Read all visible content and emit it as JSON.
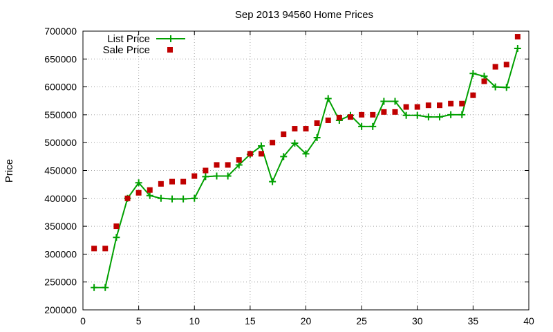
{
  "chart_data": {
    "type": "line",
    "title": "Sep 2013 94560 Home Prices",
    "xlabel": "",
    "ylabel": "Price",
    "xlim": [
      0,
      40
    ],
    "ylim": [
      200000,
      700000
    ],
    "xticks": [
      0,
      5,
      10,
      15,
      20,
      25,
      30,
      35,
      40
    ],
    "yticks": [
      200000,
      250000,
      300000,
      350000,
      400000,
      450000,
      500000,
      550000,
      600000,
      650000,
      700000
    ],
    "grid": true,
    "legend_position": "top-left",
    "series": [
      {
        "name": "List Price",
        "style": "line-with-plus-markers",
        "color": "#00a000",
        "x": [
          1,
          2,
          3,
          4,
          5,
          6,
          7,
          8,
          9,
          10,
          11,
          12,
          13,
          14,
          15,
          16,
          17,
          18,
          19,
          20,
          21,
          22,
          23,
          24,
          25,
          26,
          27,
          28,
          29,
          30,
          31,
          32,
          33,
          34,
          35,
          36,
          37,
          38,
          39
        ],
        "y": [
          240000,
          240000,
          330000,
          400000,
          428000,
          405000,
          400000,
          399000,
          399000,
          400000,
          439000,
          440000,
          440000,
          460000,
          479000,
          494000,
          430000,
          475000,
          499000,
          480000,
          509000,
          579000,
          540000,
          549000,
          529000,
          529000,
          574000,
          574000,
          549000,
          549000,
          546000,
          546000,
          550000,
          550000,
          624000,
          619000,
          600000,
          599000,
          669000
        ]
      },
      {
        "name": "Sale Price",
        "style": "square-markers",
        "color": "#c00000",
        "x": [
          1,
          2,
          3,
          4,
          5,
          6,
          7,
          8,
          9,
          10,
          11,
          12,
          13,
          14,
          15,
          16,
          17,
          18,
          19,
          20,
          21,
          22,
          23,
          24,
          25,
          26,
          27,
          28,
          29,
          30,
          31,
          32,
          33,
          34,
          35,
          36,
          37,
          38,
          39
        ],
        "y": [
          310000,
          310000,
          350000,
          400000,
          410000,
          415000,
          426000,
          430000,
          430000,
          440000,
          450000,
          460000,
          460000,
          469000,
          480000,
          480000,
          500000,
          515000,
          525000,
          525000,
          535000,
          540000,
          545000,
          546000,
          550000,
          550000,
          555000,
          555000,
          564000,
          564000,
          567000,
          567000,
          570000,
          570000,
          585000,
          610000,
          636000,
          640000,
          690000
        ]
      }
    ]
  }
}
